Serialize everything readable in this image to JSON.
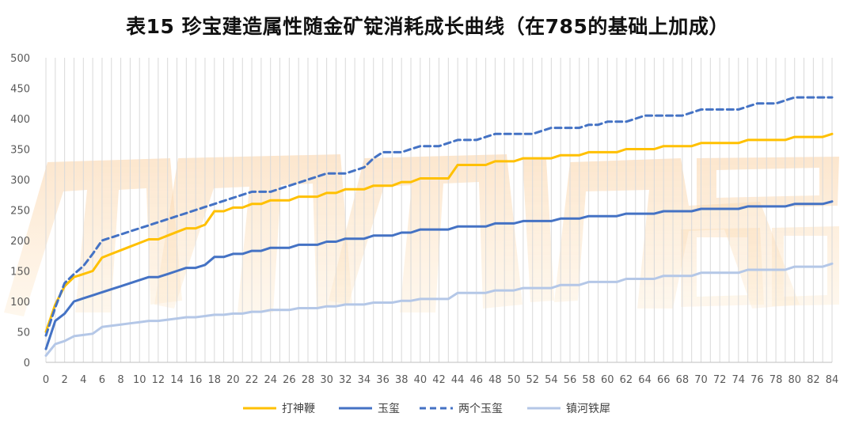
{
  "chart_data": {
    "type": "line",
    "title": "表15 珍宝建造属性随金矿锭消耗成长曲线（在785的基础上加成）",
    "xlabel": "",
    "ylabel": "",
    "x": [
      0,
      1,
      2,
      3,
      4,
      5,
      6,
      7,
      8,
      9,
      10,
      11,
      12,
      13,
      14,
      15,
      16,
      17,
      18,
      19,
      20,
      21,
      22,
      23,
      24,
      25,
      26,
      27,
      28,
      29,
      30,
      31,
      32,
      33,
      34,
      35,
      36,
      37,
      38,
      39,
      40,
      41,
      42,
      43,
      44,
      45,
      46,
      47,
      48,
      49,
      50,
      51,
      52,
      53,
      54,
      55,
      56,
      57,
      58,
      59,
      60,
      61,
      62,
      63,
      64,
      65,
      66,
      67,
      68,
      69,
      70,
      71,
      72,
      73,
      74,
      75,
      76,
      77,
      78,
      79,
      80,
      81,
      82,
      83,
      84
    ],
    "x_tick_labels": [
      "0",
      "2",
      "4",
      "6",
      "8",
      "10",
      "12",
      "14",
      "16",
      "18",
      "20",
      "22",
      "24",
      "26",
      "28",
      "30",
      "32",
      "34",
      "36",
      "38",
      "40",
      "42",
      "44",
      "46",
      "48",
      "50",
      "52",
      "54",
      "56",
      "58",
      "60",
      "62",
      "64",
      "66",
      "68",
      "70",
      "72",
      "74",
      "76",
      "78",
      "80",
      "82",
      "84"
    ],
    "xlim": [
      0,
      84
    ],
    "ylim": [
      0,
      500
    ],
    "y_ticks": [
      0,
      50,
      100,
      150,
      200,
      250,
      300,
      350,
      400,
      450,
      500
    ],
    "grid": "vertical",
    "legend": "bottom",
    "series": [
      {
        "name": "打神鞭",
        "color": "#FFC000",
        "dash": "solid",
        "values": [
          50,
          95,
          125,
          140,
          145,
          150,
          172,
          178,
          184,
          190,
          196,
          202,
          202,
          208,
          214,
          220,
          220,
          226,
          248,
          248,
          254,
          254,
          260,
          260,
          266,
          266,
          266,
          272,
          272,
          272,
          278,
          278,
          284,
          284,
          284,
          290,
          290,
          290,
          296,
          296,
          302,
          302,
          302,
          302,
          324,
          324,
          324,
          324,
          330,
          330,
          330,
          335,
          335,
          335,
          335,
          340,
          340,
          340,
          345,
          345,
          345,
          345,
          350,
          350,
          350,
          350,
          355,
          355,
          355,
          355,
          360,
          360,
          360,
          360,
          360,
          365,
          365,
          365,
          365,
          365,
          370,
          370,
          370,
          370,
          375
        ]
      },
      {
        "name": "玉玺",
        "color": "#4472C4",
        "dash": "solid",
        "values": [
          22,
          68,
          80,
          100,
          105,
          110,
          115,
          120,
          125,
          130,
          135,
          140,
          140,
          145,
          150,
          155,
          155,
          160,
          173,
          173,
          178,
          178,
          183,
          183,
          188,
          188,
          188,
          193,
          193,
          193,
          198,
          198,
          203,
          203,
          203,
          208,
          208,
          208,
          213,
          213,
          218,
          218,
          218,
          218,
          223,
          223,
          223,
          223,
          228,
          228,
          228,
          232,
          232,
          232,
          232,
          236,
          236,
          236,
          240,
          240,
          240,
          240,
          244,
          244,
          244,
          244,
          248,
          248,
          248,
          248,
          252,
          252,
          252,
          252,
          252,
          256,
          256,
          256,
          256,
          256,
          260,
          260,
          260,
          260,
          264
        ]
      },
      {
        "name": "两个玉玺",
        "color": "#4472C4",
        "dash": "dashed",
        "values": [
          44,
          90,
          130,
          145,
          158,
          178,
          200,
          205,
          210,
          215,
          220,
          225,
          230,
          235,
          240,
          245,
          250,
          255,
          260,
          265,
          270,
          275,
          280,
          280,
          280,
          285,
          290,
          295,
          300,
          305,
          310,
          310,
          310,
          315,
          320,
          335,
          345,
          345,
          345,
          350,
          355,
          355,
          355,
          360,
          365,
          365,
          365,
          370,
          375,
          375,
          375,
          375,
          375,
          380,
          385,
          385,
          385,
          385,
          390,
          390,
          395,
          395,
          395,
          400,
          405,
          405,
          405,
          405,
          405,
          410,
          415,
          415,
          415,
          415,
          415,
          420,
          425,
          425,
          425,
          430,
          435,
          435,
          435,
          435,
          435
        ]
      },
      {
        "name": "镇河铁犀",
        "color": "#B4C7E7",
        "dash": "solid",
        "values": [
          11,
          30,
          35,
          43,
          45,
          47,
          58,
          60,
          62,
          64,
          66,
          68,
          68,
          70,
          72,
          74,
          74,
          76,
          78,
          78,
          80,
          80,
          83,
          83,
          86,
          86,
          86,
          89,
          89,
          89,
          92,
          92,
          95,
          95,
          95,
          98,
          98,
          98,
          101,
          101,
          104,
          104,
          104,
          104,
          114,
          114,
          114,
          114,
          118,
          118,
          118,
          122,
          122,
          122,
          122,
          127,
          127,
          127,
          132,
          132,
          132,
          132,
          137,
          137,
          137,
          137,
          142,
          142,
          142,
          142,
          147,
          147,
          147,
          147,
          147,
          152,
          152,
          152,
          152,
          152,
          157,
          157,
          157,
          157,
          162
        ]
      }
    ]
  }
}
